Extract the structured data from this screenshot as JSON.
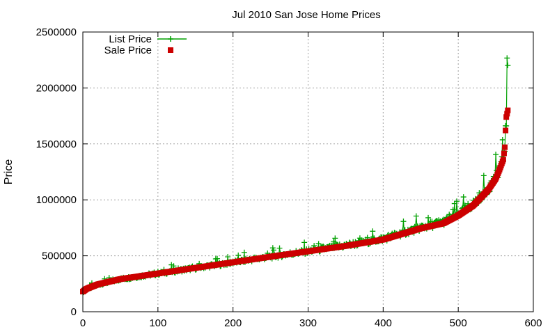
{
  "chart_data": {
    "type": "line",
    "title": "Jul 2010 San Jose Home Prices",
    "xlabel": "",
    "ylabel": "Price",
    "xlim": [
      0,
      600
    ],
    "ylim": [
      0,
      2500000
    ],
    "xticks": [
      "0",
      "100",
      "200",
      "300",
      "400",
      "500",
      "600"
    ],
    "yticks": [
      "0",
      "500000",
      "1000000",
      "1500000",
      "2000000",
      "2500000"
    ],
    "grid": true,
    "legend_position": "top-left",
    "series": [
      {
        "name": "List Price",
        "style": "line-with-plus-markers",
        "color": "#00a000",
        "approx_count": 567,
        "curve_points": [
          [
            0,
            175000
          ],
          [
            5,
            200000
          ],
          [
            20,
            240000
          ],
          [
            50,
            290000
          ],
          [
            100,
            340000
          ],
          [
            150,
            390000
          ],
          [
            200,
            440000
          ],
          [
            250,
            490000
          ],
          [
            300,
            540000
          ],
          [
            350,
            590000
          ],
          [
            400,
            650000
          ],
          [
            450,
            750000
          ],
          [
            480,
            800000
          ],
          [
            500,
            870000
          ],
          [
            520,
            960000
          ],
          [
            540,
            1100000
          ],
          [
            550,
            1200000
          ],
          [
            555,
            1280000
          ],
          [
            560,
            1370000
          ],
          [
            562,
            1480000
          ],
          [
            563,
            1600000
          ],
          [
            564,
            1700000
          ],
          [
            566,
            2200000
          ]
        ]
      },
      {
        "name": "Sale Price",
        "style": "square-markers",
        "color": "#cc0000",
        "approx_count": 567,
        "curve_points": [
          [
            0,
            180000
          ],
          [
            5,
            205000
          ],
          [
            20,
            245000
          ],
          [
            50,
            292000
          ],
          [
            100,
            342000
          ],
          [
            150,
            392000
          ],
          [
            200,
            442000
          ],
          [
            250,
            492000
          ],
          [
            300,
            540000
          ],
          [
            350,
            588000
          ],
          [
            400,
            645000
          ],
          [
            450,
            745000
          ],
          [
            480,
            790000
          ],
          [
            500,
            860000
          ],
          [
            520,
            950000
          ],
          [
            540,
            1090000
          ],
          [
            550,
            1190000
          ],
          [
            555,
            1270000
          ],
          [
            560,
            1360000
          ],
          [
            562,
            1470000
          ],
          [
            563,
            1620000
          ],
          [
            564,
            1740000
          ],
          [
            566,
            1800000
          ]
        ]
      }
    ]
  }
}
